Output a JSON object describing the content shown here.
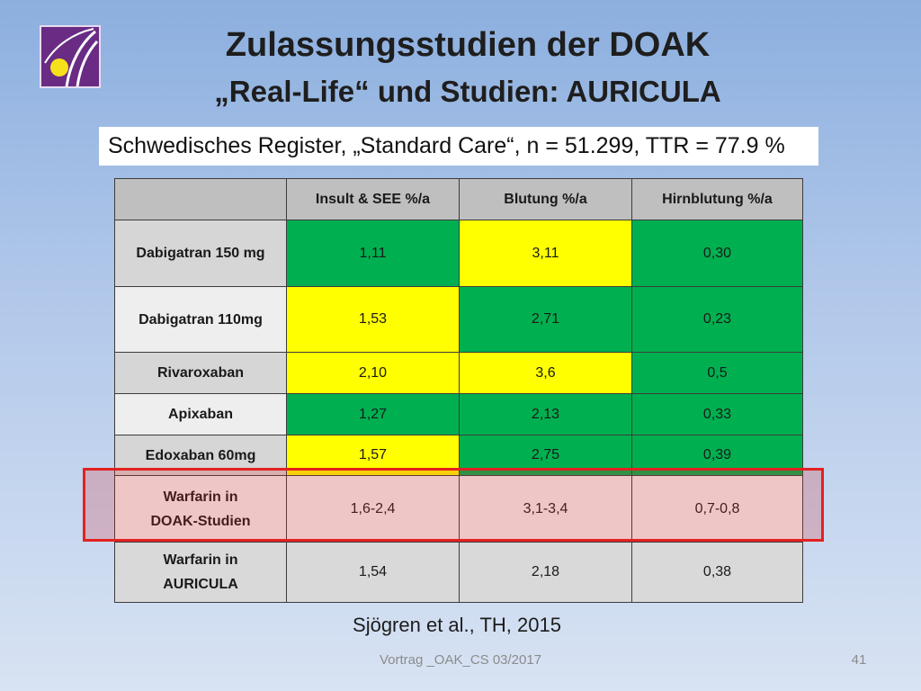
{
  "slide": {
    "logo_icon": "purple-curves-sun-logo",
    "title_line1": "Zulassungsstudien der DOAK",
    "title_line2": "„Real-Life“ und Studien: AURICULA",
    "subtitle": "Schwedisches Register, „Standard Care“, n = 51.299, TTR = 77.9 %",
    "citation": "Sjögren et al., TH, 2015",
    "footer_text": "Vortrag _OAK_CS 03/2017",
    "page_number": "41"
  },
  "colors": {
    "green": "#00b050",
    "yellow": "#ffff00",
    "highlight_border": "#e3211f",
    "logo_purple": "#6a2b84",
    "logo_sun": "#f7e11b"
  },
  "table": {
    "headers": [
      "Insult & SEE %/a",
      "Blutung %/a",
      "Hirnblutung %/a"
    ],
    "rows": [
      {
        "label": [
          "Dabigatran 150 mg"
        ],
        "label_color": "#d6d6d6",
        "values": [
          "1,11",
          "3,11",
          "0,30"
        ],
        "cell_colors": [
          "#00b050",
          "#ffff00",
          "#00b050"
        ]
      },
      {
        "label": [
          "Dabigatran 110mg"
        ],
        "label_color": "#eeeeee",
        "values": [
          "1,53",
          "2,71",
          "0,23"
        ],
        "cell_colors": [
          "#ffff00",
          "#00b050",
          "#00b050"
        ]
      },
      {
        "label": [
          "Rivaroxaban"
        ],
        "label_color": "#d6d6d6",
        "values": [
          "2,10",
          "3,6",
          "0,5"
        ],
        "cell_colors": [
          "#ffff00",
          "#ffff00",
          "#00b050"
        ]
      },
      {
        "label": [
          "Apixaban"
        ],
        "label_color": "#eeeeee",
        "values": [
          "1,27",
          "2,13",
          "0,33"
        ],
        "cell_colors": [
          "#00b050",
          "#00b050",
          "#00b050"
        ]
      },
      {
        "label": [
          "Edoxaban 60mg"
        ],
        "label_color": "#d6d6d6",
        "values": [
          "1,57",
          "2,75",
          "0,39"
        ],
        "cell_colors": [
          "#ffff00",
          "#00b050",
          "#00b050"
        ]
      },
      {
        "label": [
          "Warfarin in",
          "DOAK-Studien"
        ],
        "label_color": "#f2f2f2",
        "values": [
          "1,6-2,4",
          "3,1-3,4",
          "0,7-0,8"
        ],
        "cell_colors": [
          "#f2f2f2",
          "#f2f2f2",
          "#f2f2f2"
        ]
      },
      {
        "label": [
          "Warfarin in",
          "AURICULA"
        ],
        "label_color": "#d9d9d9",
        "values": [
          "1,54",
          "2,18",
          "0,38"
        ],
        "cell_colors": [
          "#d9d9d9",
          "#d9d9d9",
          "#d9d9d9"
        ]
      }
    ]
  }
}
